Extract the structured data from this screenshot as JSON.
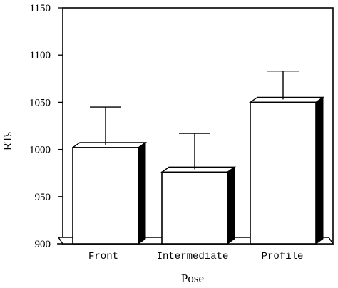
{
  "chart_data": {
    "type": "bar",
    "title": "",
    "xlabel": "Pose",
    "ylabel": "RTs",
    "categories": [
      "Front",
      "Intermediate",
      "Profile"
    ],
    "values": [
      1002,
      976,
      1050
    ],
    "error_upper": [
      1045,
      1017,
      1083
    ],
    "ylim": [
      900,
      1150
    ],
    "yticks": [
      "900",
      "950",
      "1000",
      "1050",
      "1100",
      "1150"
    ],
    "grid": false,
    "legend": "none",
    "style": "3d-bars-black-side-white-face"
  }
}
